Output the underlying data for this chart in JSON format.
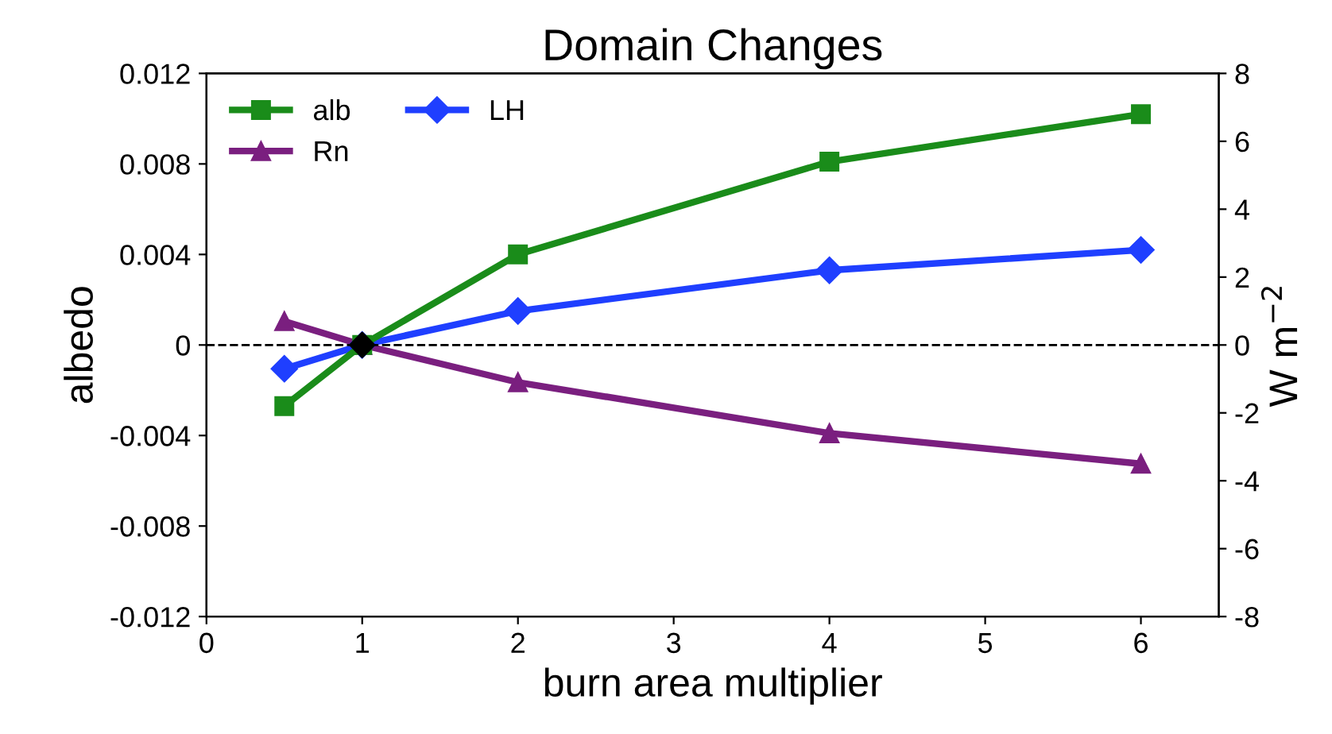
{
  "chart_data": {
    "type": "line",
    "title": "Domain Changes",
    "xlabel": "burn area multiplier",
    "ylabel": "albedo",
    "y2label": "W m$^{−2}$",
    "xlim": [
      0,
      6.5
    ],
    "xticks": [
      0,
      1,
      2,
      3,
      4,
      5,
      6
    ],
    "ylim": [
      -0.012,
      0.012
    ],
    "yticks": [
      -0.012,
      -0.008,
      -0.004,
      0,
      0.004,
      0.008,
      0.012
    ],
    "y2lim": [
      -8,
      8
    ],
    "y2ticks": [
      -8,
      -6,
      -4,
      -2,
      0,
      2,
      4,
      6,
      8
    ],
    "legend": "top left",
    "grid": false,
    "ref_lines": [
      {
        "axis": "y",
        "value": 0,
        "color": "#000000",
        "line_style": "dashed"
      }
    ],
    "series": [
      {
        "name": "alb",
        "color": "#1a8c1a",
        "marker": "square",
        "x": [
          0.5,
          1,
          2,
          4,
          6
        ],
        "values": [
          -0.0027,
          0,
          0.004,
          0.0081,
          0.0102
        ]
      },
      {
        "name": "Rn",
        "color": "#7a1f7f",
        "marker": "triangle",
        "axis": "y2",
        "x": [
          0.5,
          1,
          2,
          4,
          6
        ],
        "values": [
          0.7,
          0,
          -1.1,
          -2.6,
          -3.5
        ]
      },
      {
        "name": "LH",
        "color": "#1f3fff",
        "marker": "diamond",
        "axis": "y2",
        "x": [
          0.5,
          1,
          2,
          4,
          6
        ],
        "values": [
          -0.7,
          0,
          1.0,
          2.2,
          2.8
        ]
      },
      {
        "type": "scatter",
        "color": "#000000",
        "marker": "diamond",
        "x": [
          1
        ],
        "values": [
          0
        ]
      }
    ]
  }
}
